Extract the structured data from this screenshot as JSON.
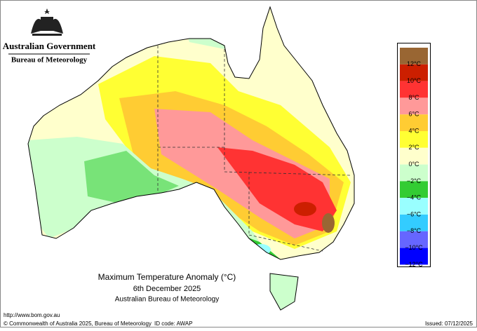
{
  "header": {
    "government": "Australian Government",
    "bureau": "Bureau of Meteorology"
  },
  "title": {
    "line1": "Maximum Temperature Anomaly (°C)",
    "line2": "6th December 2025",
    "line3": "Australian Bureau of Meteorology"
  },
  "legend": {
    "colors": [
      "#996633",
      "#cc1f00",
      "#ff3333",
      "#ff9999",
      "#ffcc33",
      "#ffff33",
      "#ffffcc",
      "#ccffcc",
      "#33cc33",
      "#99ffff",
      "#33ccff",
      "#6666ff",
      "#0000ff"
    ],
    "labels": [
      "12°C",
      "10°C",
      "8°C",
      "6°C",
      "4°C",
      "2°C",
      "0°C",
      "−2°C",
      "−4°C",
      "−6°C",
      "−8°C",
      "−10°C",
      "−12°C"
    ]
  },
  "footer": {
    "url": "http://www.bom.gov.au",
    "copyright": "© Commonwealth of Australia 2025, Bureau of Meteorology",
    "id": "ID code: AWAP",
    "issued": "Issued: 07/12/2025"
  }
}
